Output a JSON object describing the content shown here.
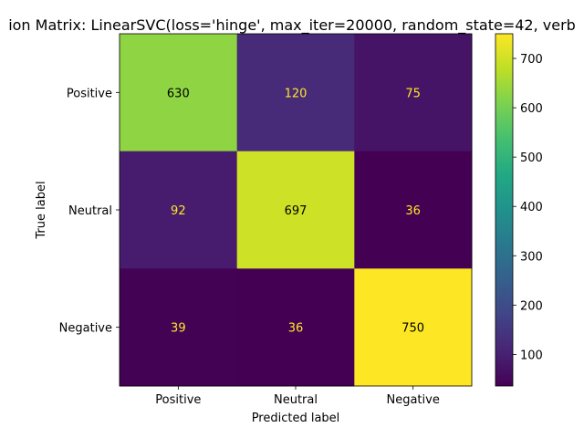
{
  "chart_data": {
    "type": "heatmap",
    "title": "ion Matrix: LinearSVC(loss='hinge', max_iter=20000, random_state=42, verb",
    "xlabel": "Predicted label",
    "ylabel": "True label",
    "x_categories": [
      "Positive",
      "Neutral",
      "Negative"
    ],
    "y_categories": [
      "Positive",
      "Neutral",
      "Negative"
    ],
    "values": [
      [
        630,
        120,
        75
      ],
      [
        92,
        697,
        36
      ],
      [
        39,
        36,
        750
      ]
    ],
    "colormap": "viridis",
    "color_range": [
      36,
      750
    ],
    "colorbar_ticks": [
      100,
      200,
      300,
      400,
      500,
      600,
      700
    ],
    "dark_text_color": "#000000",
    "light_text_color": "#fde725",
    "grid": false
  }
}
